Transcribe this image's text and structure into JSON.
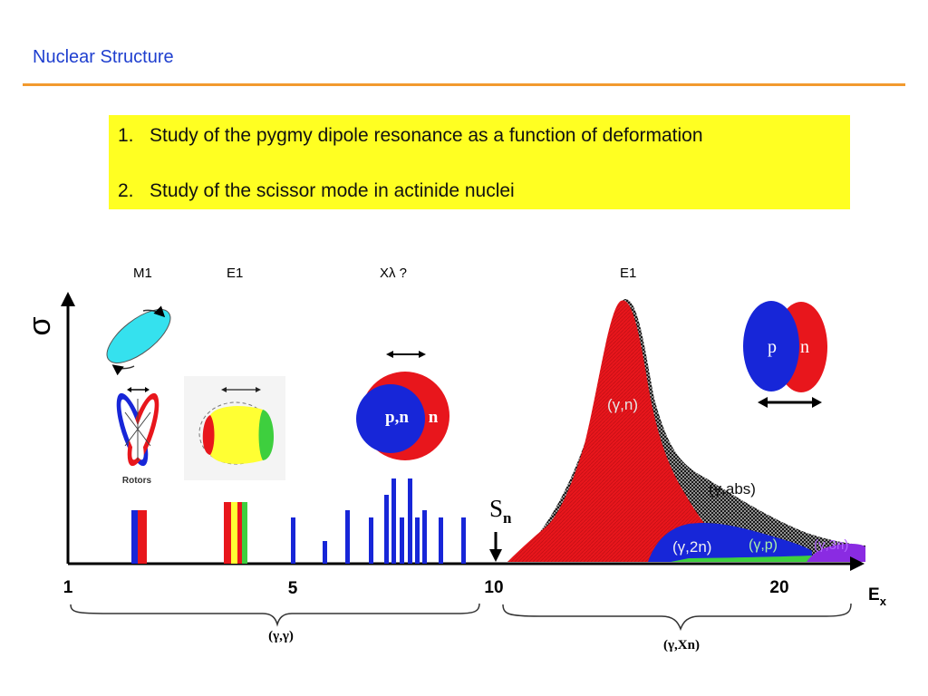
{
  "slide": {
    "title": "Nuclear Structure",
    "points": [
      {
        "num": "1.",
        "text": "Study of the pygmy dipole resonance as a function of deformation"
      },
      {
        "num": "2.",
        "text": "Study of the scissor mode in actinide nuclei"
      }
    ]
  },
  "diagram": {
    "mode_labels": [
      "M1",
      "E1",
      "Xλ ?",
      "E1"
    ],
    "y_axis_symbol": "σ",
    "x_axis_label": "E",
    "x_axis_subscript": "x",
    "x_ticks": [
      "1",
      "5",
      "10",
      "20"
    ],
    "separation_label": "S",
    "separation_subscript": "n",
    "rotors_caption": "Rotors",
    "pygmy_core_label": "p,n",
    "pygmy_skin_label": "n",
    "gdr_proton_label": "p",
    "gdr_neutron_label": "n",
    "curve_labels": [
      "(γ,n)",
      "(γ,abs)",
      "(γ,2n)",
      "(γ,p)",
      "(γ,3n)"
    ],
    "range_labels": [
      "(γ,γ)",
      "(γ,Xn)"
    ],
    "colors": {
      "red": "#e8161c",
      "blue": "#1726d8",
      "yellow": "#ffff33",
      "green": "#3ecf3e",
      "cyan": "#35e1ee",
      "hatch": "#222222"
    }
  }
}
